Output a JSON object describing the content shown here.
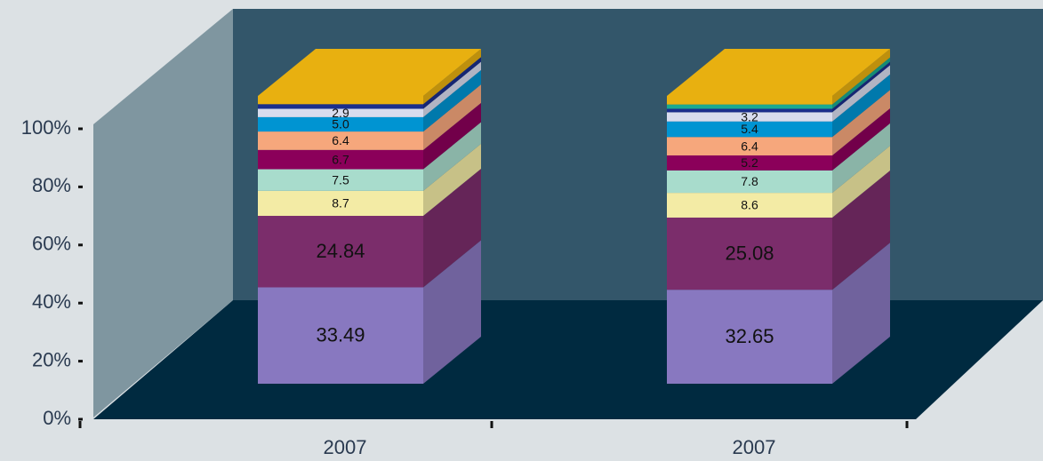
{
  "chart_data": {
    "type": "bar3d_stacked",
    "categories": [
      "2007",
      "2007"
    ],
    "ylim": [
      0,
      100
    ],
    "yticks": [
      {
        "value": 0,
        "label": "0%"
      },
      {
        "value": 20,
        "label": "20%"
      },
      {
        "value": 40,
        "label": "40%"
      },
      {
        "value": 60,
        "label": "60%"
      },
      {
        "value": 80,
        "label": "80%"
      },
      {
        "value": 100,
        "label": "100%"
      }
    ],
    "series": [
      {
        "color": "#8878c0",
        "values": [
          33.49,
          32.65
        ]
      },
      {
        "color": "#7b2d6b",
        "values": [
          24.84,
          25.08
        ]
      },
      {
        "color": "#f3eba5",
        "values": [
          8.7,
          8.6
        ]
      },
      {
        "color": "#a8dccc",
        "values": [
          7.5,
          7.8
        ]
      },
      {
        "color": "#8b005a",
        "values": [
          6.7,
          5.2
        ]
      },
      {
        "color": "#f6a77c",
        "values": [
          6.4,
          6.4
        ]
      },
      {
        "color": "#0094d2",
        "values": [
          5.0,
          5.4
        ],
        "value_labels": [
          "5.0",
          "5.4"
        ]
      },
      {
        "color": "#d8dcee",
        "values": [
          2.9,
          3.2
        ]
      },
      {
        "color": "#1b2e8c",
        "values": [
          1.6,
          1.2
        ]
      },
      {
        "color": "#1aa98f",
        "values": [
          0,
          1.5
        ]
      },
      {
        "color": "#e8b010",
        "values": [
          2.87,
          2.97
        ]
      }
    ]
  }
}
